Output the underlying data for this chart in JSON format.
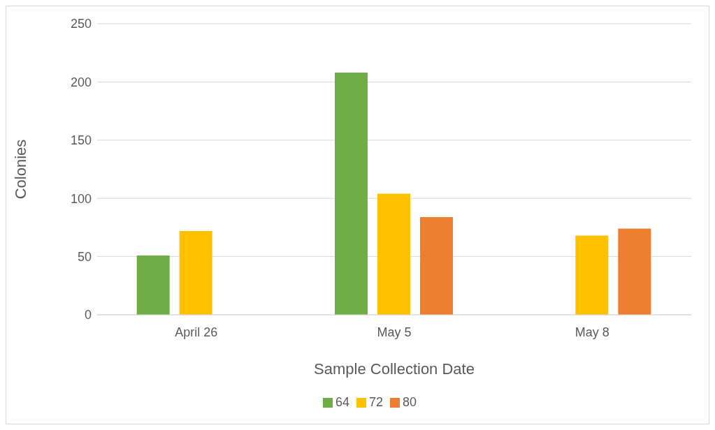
{
  "chart_data": {
    "type": "bar",
    "xlabel": "Sample Collection Date",
    "ylabel": "Colonies",
    "categories": [
      "April 26",
      "May 5",
      "May 8"
    ],
    "series": [
      {
        "name": "64",
        "color": "#70ad47",
        "values": [
          51,
          208,
          null
        ]
      },
      {
        "name": "72",
        "color": "#ffc000",
        "values": [
          72,
          104,
          68
        ]
      },
      {
        "name": "80",
        "color": "#ed7d31",
        "values": [
          null,
          84,
          74
        ]
      }
    ],
    "ylim": [
      0,
      250
    ],
    "yticks": [
      0,
      50,
      100,
      150,
      200,
      250
    ],
    "grid": "y",
    "legend": "bottom"
  }
}
